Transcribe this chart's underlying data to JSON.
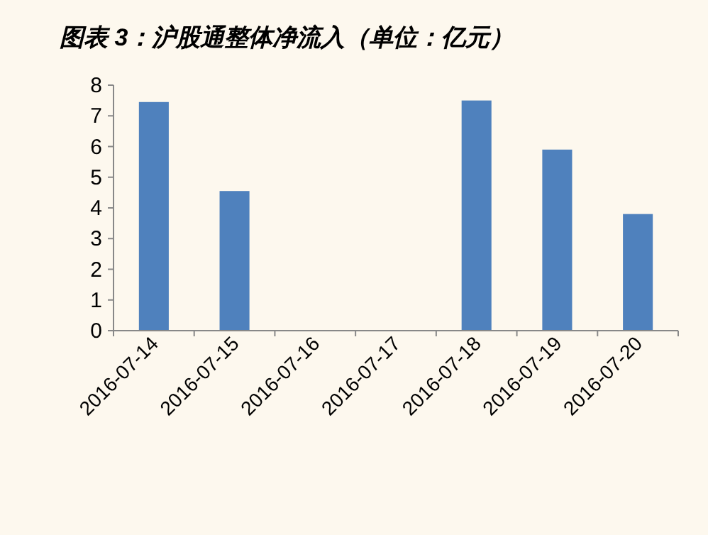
{
  "chart_data": {
    "type": "bar",
    "title": "图表 3：沪股通整体净流入（单位：亿元）",
    "categories": [
      "2016-07-14",
      "2016-07-15",
      "2016-07-16",
      "2016-07-17",
      "2016-07-18",
      "2016-07-19",
      "2016-07-20"
    ],
    "values": [
      7.45,
      4.55,
      0,
      0,
      7.5,
      5.9,
      3.8
    ],
    "color": "#4f81bd",
    "ylim": [
      0,
      8
    ],
    "yticks": [
      0,
      1,
      2,
      3,
      4,
      5,
      6,
      7,
      8
    ]
  }
}
